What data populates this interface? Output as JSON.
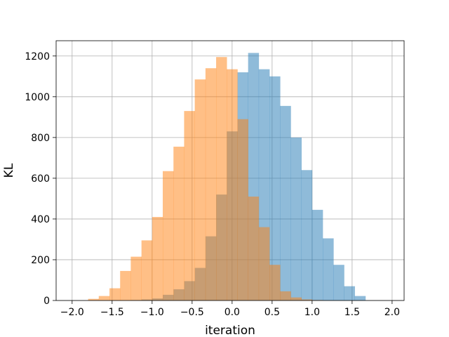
{
  "chart_data": {
    "type": "bar",
    "title": "",
    "xlabel": "iteration",
    "ylabel": "KL",
    "xlim": [
      -2.2,
      2.15
    ],
    "ylim": [
      0,
      1275
    ],
    "grid": true,
    "legend": "none",
    "x_ticks": [
      -2.0,
      -1.5,
      -1.0,
      -0.5,
      0.0,
      0.5,
      1.0,
      1.5,
      2.0
    ],
    "x_tick_labels": [
      "−2.0",
      "−1.5",
      "−1.0",
      "−0.5",
      "0.0",
      "0.5",
      "1.0",
      "1.5",
      "2.0"
    ],
    "y_ticks": [
      0,
      200,
      400,
      600,
      800,
      1000,
      1200
    ],
    "y_tick_labels": [
      "0",
      "200",
      "400",
      "600",
      "800",
      "1000",
      "1200"
    ],
    "bin_edges": [
      -1.8,
      -1.667,
      -1.533,
      -1.4,
      -1.267,
      -1.133,
      -1.0,
      -0.867,
      -0.733,
      -0.6,
      -0.467,
      -0.333,
      -0.2,
      -0.067,
      0.067,
      0.2,
      0.333,
      0.467,
      0.6,
      0.733,
      0.867,
      1.0,
      1.133,
      1.267,
      1.4,
      1.533,
      1.667
    ],
    "series": [
      {
        "color": "#1f77b4",
        "opacity": 0.5,
        "values": [
          0,
          0,
          0,
          0,
          2,
          5,
          10,
          28,
          55,
          95,
          160,
          315,
          520,
          830,
          1120,
          1215,
          1135,
          1100,
          955,
          800,
          640,
          445,
          305,
          175,
          70,
          22,
          8
        ]
      },
      {
        "color": "#ff7f0e",
        "opacity": 0.5,
        "values": [
          8,
          22,
          60,
          145,
          215,
          295,
          410,
          635,
          755,
          930,
          1085,
          1140,
          1195,
          1135,
          890,
          510,
          360,
          175,
          45,
          15,
          5,
          2,
          0,
          0,
          0,
          0,
          0
        ]
      }
    ]
  }
}
